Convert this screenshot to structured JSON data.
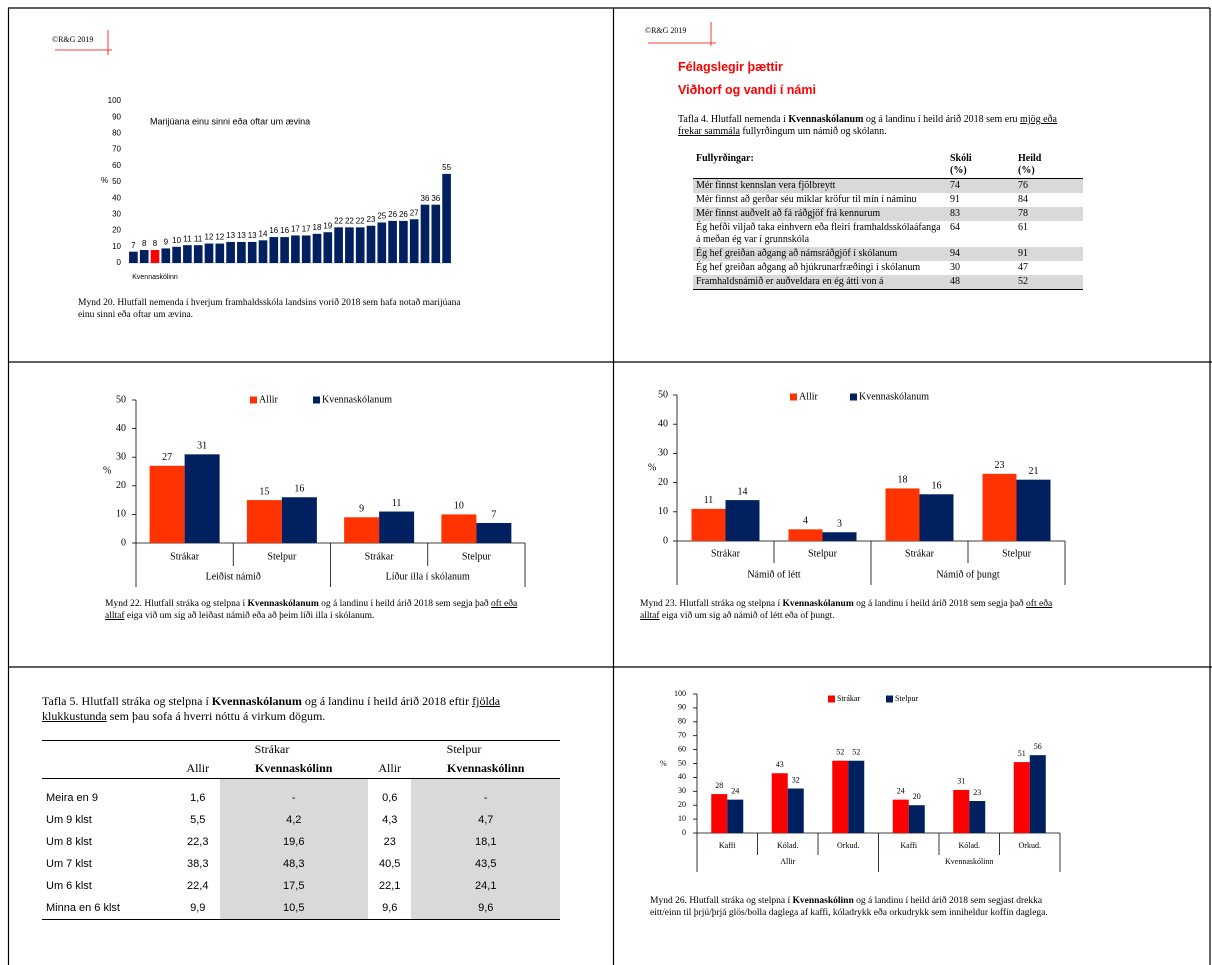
{
  "copyright": "©R&G 2019",
  "chart_data": [
    {
      "type": "bar",
      "title": "Marijúana einu sinni eða oftar um ævina",
      "ylabel": "%",
      "categories": [
        null,
        null,
        "Kvennaskólinn",
        null,
        null,
        null,
        null,
        null,
        null,
        null,
        null,
        null,
        null,
        null,
        null,
        null,
        null,
        null,
        null,
        null,
        null,
        null,
        null,
        null,
        null,
        null,
        null,
        null,
        null,
        null
      ],
      "values": [
        7,
        8,
        8,
        9,
        10,
        11,
        11,
        12,
        12,
        13,
        13,
        13,
        14,
        16,
        16,
        17,
        17,
        18,
        19,
        22,
        22,
        22,
        23,
        25,
        26,
        26,
        27,
        36,
        36,
        55
      ],
      "colors": [
        "#002060",
        "#002060",
        "#ff0000",
        "#002060",
        "#002060",
        "#002060",
        "#002060",
        "#002060",
        "#002060",
        "#002060",
        "#002060",
        "#002060",
        "#002060",
        "#002060",
        "#002060",
        "#002060",
        "#002060",
        "#002060",
        "#002060",
        "#002060",
        "#002060",
        "#002060",
        "#002060",
        "#002060",
        "#002060",
        "#002060",
        "#002060",
        "#002060",
        "#002060",
        "#002060"
      ],
      "ylim": [
        0,
        100
      ],
      "yticks": [
        0,
        10,
        20,
        30,
        40,
        50,
        60,
        70,
        80,
        90,
        100
      ],
      "caption": [
        {
          "text": "Mynd 20.  Hlutfall nemenda í hverjum framhaldsskóla landsins vorið 2018 sem hafa notað marijúana einu sinni eða oftar um ævina."
        }
      ]
    },
    {
      "type": "grouped_bar",
      "ylabel": "%",
      "categories": [
        "Strákar",
        "Stelpur",
        "Strákar",
        "Stelpur"
      ],
      "groups": [
        "Leiðist námið",
        "Líður illa í skólanum"
      ],
      "series": [
        {
          "name": "Allir",
          "color": "#ff3300",
          "values": [
            27,
            15,
            9,
            10
          ]
        },
        {
          "name": "Kvennaskólanum",
          "color": "#002060",
          "values": [
            31,
            16,
            11,
            7
          ]
        }
      ],
      "ylim": [
        0,
        50
      ],
      "yticks": [
        0,
        10,
        20,
        30,
        40,
        50
      ],
      "caption": [
        {
          "text": "Mynd 22.  Hlutfall stráka og stelpna í "
        },
        {
          "text": "Kvennaskólanum",
          "style": "bold"
        },
        {
          "text": " og á landinu í heild árið 2018 sem segja það "
        },
        {
          "text": "oft eða alltaf",
          "style": "underline"
        },
        {
          "text": " eiga við um sig að leiðast námið eða að þeim líði illa í skólanum."
        }
      ]
    },
    {
      "type": "grouped_bar",
      "ylabel": "%",
      "categories": [
        "Strákar",
        "Stelpur",
        "Strákar",
        "Stelpur"
      ],
      "groups": [
        "Námið of létt",
        "Námið of þungt"
      ],
      "series": [
        {
          "name": "Allir",
          "color": "#ff3300",
          "values": [
            11,
            4,
            18,
            23
          ]
        },
        {
          "name": "Kvennaskólanum",
          "color": "#002060",
          "values": [
            14,
            3,
            16,
            21
          ]
        }
      ],
      "ylim": [
        0,
        50
      ],
      "yticks": [
        0,
        10,
        20,
        30,
        40,
        50
      ],
      "caption": [
        {
          "text": "Mynd 23.  Hlutfall stráka og stelpna í "
        },
        {
          "text": "Kvennaskólanum",
          "style": "bold"
        },
        {
          "text": " og á landinu í heild árið 2018 sem segja það "
        },
        {
          "text": "oft eða alltaf",
          "style": "underline"
        },
        {
          "text": " eiga við um sig að námið of létt eða of þungt."
        }
      ]
    },
    {
      "type": "grouped_bar",
      "ylabel": "%",
      "categories": [
        "Kaffi",
        "Kólad.",
        "Orkud.",
        "Kaffi",
        "Kólad.",
        "Orkud."
      ],
      "groups": [
        "Allir",
        "Kvennaskólinn"
      ],
      "series": [
        {
          "name": "Strákar",
          "color": "#ff0000",
          "values": [
            28,
            43,
            52,
            24,
            31,
            51
          ]
        },
        {
          "name": "Stelpur",
          "color": "#002060",
          "values": [
            24,
            32,
            52,
            20,
            23,
            56
          ]
        }
      ],
      "ylim": [
        0,
        100
      ],
      "yticks": [
        0,
        10,
        20,
        30,
        40,
        50,
        60,
        70,
        80,
        90,
        100
      ],
      "caption": [
        {
          "text": "Mynd 26.  Hlutfall stráka og stelpna í "
        },
        {
          "text": "Kvennaskólinn",
          "style": "bold"
        },
        {
          "text": " og á landinu í heild árið 2018 sem segjast drekka eitt/einn til þrjú/þrjá glös/bolla daglega af kaffi, kóladrykk eða orkudrykk sem inniheldur koffín daglega."
        }
      ]
    }
  ],
  "table4": {
    "headings": [
      "Félagslegir þættir",
      "Viðhorf og vandi í námi"
    ],
    "caption": [
      {
        "text": "Tafla 4.  Hlutfall nemenda í "
      },
      {
        "text": "Kvennaskólanum",
        "style": "bold"
      },
      {
        "text": " og á landinu í heild árið 2018 sem eru "
      },
      {
        "text": "mjög eða frekar sammála",
        "style": "underline"
      },
      {
        "text": " fullyrðingum um námið og skólann."
      }
    ],
    "header": [
      "Fullyrðingar:",
      "Skóli",
      "Heild"
    ],
    "units": [
      "(%)",
      "(%)"
    ],
    "rows": [
      [
        "Mér finnst kennslan vera fjölbreytt",
        74,
        76
      ],
      [
        "Mér finnst að gerðar séu miklar kröfur til mín í náminu",
        91,
        84
      ],
      [
        "Mér finnst auðvelt að fá ráðgjöf frá kennurum",
        83,
        78
      ],
      [
        "Ég hefði viljað taka einhvern eða fleiri framhaldsskólaáfanga á meðan ég var í grunnskóla",
        64,
        61
      ],
      [
        "Ég hef greiðan aðgang að námsráðgjöf í skólanum",
        94,
        91
      ],
      [
        "Ég hef greiðan aðgang að hjúkrunarfræðingi í skólanum",
        30,
        47
      ],
      [
        "Framhaldsnámið er auðveldara en ég átti von á",
        48,
        52
      ]
    ]
  },
  "table5": {
    "caption": [
      {
        "text": "Tafla 5.      Hlutfall stráka og stelpna í "
      },
      {
        "text": "Kvennaskólanum",
        "style": "bold"
      },
      {
        "text": " og á landinu í heild árið 2018 eftir "
      },
      {
        "text": "fjölda klukkustunda",
        "style": "underline"
      },
      {
        "text": " sem þau sofa á hverri nóttu á virkum dögum."
      }
    ],
    "groups": [
      "Strákar",
      "Stelpur"
    ],
    "columns": [
      "Allir",
      "Kvennaskólinn",
      "Allir",
      "Kvennaskólinn"
    ],
    "rows": [
      [
        "Meira en 9",
        "1,6",
        "-",
        "0,6",
        "-"
      ],
      [
        "Um 9 klst",
        "5,5",
        "4,2",
        "4,3",
        "4,7"
      ],
      [
        "Um 8 klst",
        "22,3",
        "19,6",
        "23",
        "18,1"
      ],
      [
        "Um 7 klst",
        "38,3",
        "48,3",
        "40,5",
        "43,5"
      ],
      [
        "Um 6 klst",
        "22,4",
        "17,5",
        "22,1",
        "24,1"
      ],
      [
        "Minna en 6 klst",
        "9,9",
        "10,5",
        "9,6",
        "9,6"
      ]
    ]
  }
}
